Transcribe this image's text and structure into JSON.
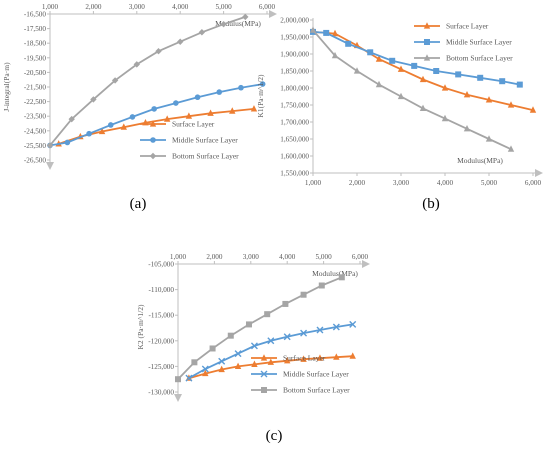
{
  "chart_data": [
    {
      "type": "line",
      "title": "",
      "caption": "(a)",
      "xlabel": "Modulus(MPa)",
      "ylabel": "J-integral(Pa·m)",
      "xlim": [
        1000,
        6000
      ],
      "ylim": [
        -26500,
        -16500
      ],
      "xticks": [
        1000,
        2000,
        3000,
        4000,
        5000,
        6000
      ],
      "xtick_labels": [
        "1,000",
        "2,000",
        "3,000",
        "4,000",
        "5,000",
        "6,000"
      ],
      "yticks": [
        -16500,
        -17500,
        -18500,
        -19500,
        -20500,
        -21500,
        -22500,
        -23500,
        -24500,
        -25500,
        -26500
      ],
      "ytick_labels": [
        "-16,500",
        "-17,500",
        "-18,500",
        "-19,500",
        "-20,500",
        "-21,500",
        "-22,500",
        "-23,500",
        "-24,500",
        "-25,500",
        "-26,500"
      ],
      "x_axis_position": "top",
      "grid": false,
      "legend_position": "bottom-right",
      "series": [
        {
          "name": "Surface Layer",
          "color": "#ED7D31",
          "marker": "triangle",
          "x": [
            1200,
            1700,
            2200,
            2700,
            3200,
            3700,
            4200,
            4700,
            5200,
            5700
          ],
          "y": [
            -25400,
            -24900,
            -24550,
            -24250,
            -23950,
            -23700,
            -23500,
            -23300,
            -23150,
            -23000
          ]
        },
        {
          "name": "Middle Surface Layer",
          "color": "#5B9BD5",
          "marker": "circle",
          "x": [
            1000,
            1400,
            1900,
            2400,
            2900,
            3400,
            3900,
            4400,
            4900,
            5400,
            5900
          ],
          "y": [
            -25500,
            -25300,
            -24700,
            -24100,
            -23550,
            -23000,
            -22600,
            -22200,
            -21850,
            -21550,
            -21300
          ]
        },
        {
          "name": "Bottom Surface Layer",
          "color": "#A5A5A5",
          "marker": "diamond",
          "x": [
            1000,
            1500,
            2000,
            2500,
            3000,
            3500,
            4000,
            4500,
            5000,
            5500
          ],
          "y": [
            -25500,
            -23700,
            -22350,
            -21050,
            -19950,
            -19050,
            -18400,
            -17750,
            -17200,
            -16700
          ]
        }
      ]
    },
    {
      "type": "line",
      "title": "",
      "caption": "(b)",
      "xlabel": "Modulus(MPa)",
      "ylabel": "K1(Pa·m^1/2)",
      "xlim": [
        1000,
        6000
      ],
      "ylim": [
        1550000,
        2000000
      ],
      "xticks": [
        1000,
        2000,
        3000,
        4000,
        5000,
        6000
      ],
      "xtick_labels": [
        "1,000",
        "2,000",
        "3,000",
        "4,000",
        "5,000",
        "6,000"
      ],
      "yticks": [
        2000000,
        1950000,
        1900000,
        1850000,
        1800000,
        1750000,
        1700000,
        1650000,
        1600000,
        1550000
      ],
      "ytick_labels": [
        "2,000,000",
        "1,950,000",
        "1,900,000",
        "1,850,000",
        "1,800,000",
        "1,750,000",
        "1,700,000",
        "1,650,000",
        "1,600,000",
        "1,550,000"
      ],
      "x_axis_position": "bottom",
      "grid": false,
      "legend_position": "top-right",
      "series": [
        {
          "name": "Surface Layer",
          "color": "#ED7D31",
          "marker": "triangle",
          "x": [
            1000,
            1500,
            2000,
            2500,
            3000,
            3500,
            4000,
            4500,
            5000,
            5500,
            6000
          ],
          "y": [
            1965000,
            1960000,
            1925000,
            1885000,
            1855000,
            1825000,
            1800000,
            1780000,
            1765000,
            1750000,
            1735000
          ]
        },
        {
          "name": "Middle Surface Layer",
          "color": "#5B9BD5",
          "marker": "square",
          "x": [
            1000,
            1300,
            1800,
            2300,
            2800,
            3300,
            3800,
            4300,
            4800,
            5300,
            5700
          ],
          "y": [
            1965000,
            1962000,
            1930000,
            1905000,
            1880000,
            1865000,
            1850000,
            1840000,
            1830000,
            1820000,
            1810000
          ]
        },
        {
          "name": "Bottom Surface Layer",
          "color": "#A5A5A5",
          "marker": "triangle",
          "x": [
            1000,
            1500,
            2000,
            2500,
            3000,
            3500,
            4000,
            4500,
            5000,
            5500
          ],
          "y": [
            1970000,
            1895000,
            1850000,
            1810000,
            1775000,
            1740000,
            1710000,
            1680000,
            1650000,
            1620000
          ]
        }
      ]
    },
    {
      "type": "line",
      "title": "",
      "caption": "(c)",
      "xlabel": "Modulus(MPa)",
      "ylabel": "K2 (Pa·m^1/2)",
      "xlim": [
        1000,
        6000
      ],
      "ylim": [
        -130000,
        -105000
      ],
      "xticks": [
        1000,
        2000,
        3000,
        4000,
        5000,
        6000
      ],
      "xtick_labels": [
        "1,000",
        "2,000",
        "3,000",
        "4,000",
        "5,000",
        "6,000"
      ],
      "yticks": [
        -105000,
        -110000,
        -115000,
        -120000,
        -125000,
        -130000
      ],
      "ytick_labels": [
        "-105,000",
        "-110,000",
        "-115,000",
        "-120,000",
        "-125,000",
        "-130,000"
      ],
      "x_axis_position": "top",
      "grid": false,
      "legend_position": "bottom-right",
      "series": [
        {
          "name": "Surface Layer",
          "color": "#ED7D31",
          "marker": "triangle",
          "x": [
            1300,
            1750,
            2200,
            2650,
            3100,
            3550,
            4000,
            4450,
            4900,
            5350,
            5800
          ],
          "y": [
            -127300,
            -126400,
            -125600,
            -125000,
            -124600,
            -124200,
            -123900,
            -123600,
            -123400,
            -123200,
            -123000
          ]
        },
        {
          "name": "Middle Surface Layer",
          "color": "#5B9BD5",
          "marker": "x",
          "x": [
            1300,
            1750,
            2200,
            2650,
            3100,
            3550,
            4000,
            4450,
            4900,
            5350,
            5800
          ],
          "y": [
            -127300,
            -125500,
            -124000,
            -122500,
            -121000,
            -120000,
            -119200,
            -118500,
            -117900,
            -117300,
            -116800
          ]
        },
        {
          "name": "Bottom Surface Layer",
          "color": "#A5A5A5",
          "marker": "square",
          "x": [
            1000,
            1450,
            1950,
            2450,
            2950,
            3450,
            3950,
            4450,
            4950,
            5500
          ],
          "y": [
            -127500,
            -124200,
            -121500,
            -119000,
            -116800,
            -114800,
            -112800,
            -111000,
            -109200,
            -107600
          ]
        }
      ]
    }
  ]
}
